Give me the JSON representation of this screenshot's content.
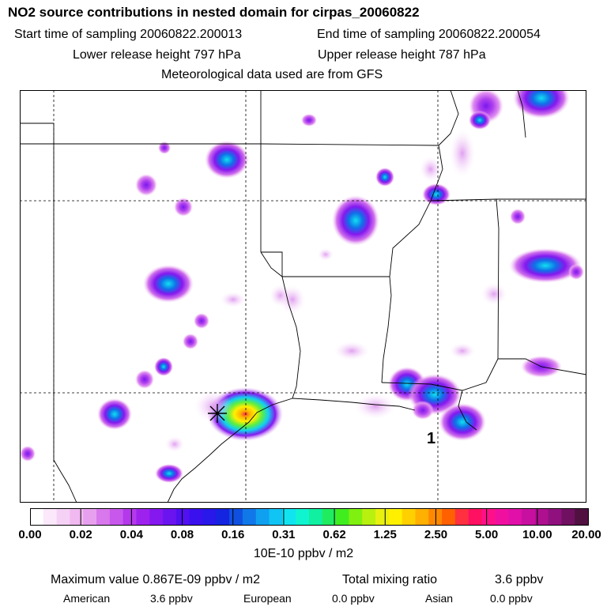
{
  "header": {
    "title": "NO2 source contributions in nested domain for cirpas_20060822",
    "start_label": "Start time of sampling 20060822.200013",
    "end_label": "End time of sampling 20060822.200054",
    "lower_label": "Lower release height  797 hPa",
    "upper_label": "Upper release height  787 hPa",
    "met_label": "Meteorological data used are from GFS"
  },
  "map": {
    "marker_label": "1",
    "source_site": "star marker near Houston"
  },
  "colorbar": {
    "ticks": [
      "0.00",
      "0.02",
      "0.04",
      "0.08",
      "0.16",
      "0.31",
      "0.62",
      "1.25",
      "2.50",
      "5.00",
      "10.00",
      "20.00"
    ],
    "units": "10E-10 ppbv / m2",
    "colors": [
      "#ffffff",
      "#fbe8fb",
      "#f6d1f6",
      "#f0b9f0",
      "#e7a0ee",
      "#d878ec",
      "#c858ec",
      "#b438ec",
      "#9e22ee",
      "#8418ef",
      "#6a14f0",
      "#5010f0",
      "#3a10ee",
      "#2818ea",
      "#1424e0",
      "#1050e0",
      "#1078e8",
      "#10a0f0",
      "#10c4f4",
      "#10e4f0",
      "#10f4d0",
      "#10f0a0",
      "#20ec60",
      "#40ee20",
      "#80f010",
      "#b8f010",
      "#e8f010",
      "#fff000",
      "#ffd000",
      "#ffb000",
      "#ff8800",
      "#ff6000",
      "#ff3040",
      "#ff1060",
      "#ff1088",
      "#f010a0",
      "#e010a8",
      "#c810a0",
      "#ae1090",
      "#901080",
      "#701060",
      "#501040"
    ]
  },
  "footer": {
    "max_label": "Maximum value  0.867E-09 ppbv / m2",
    "total_label": "Total mixing ratio",
    "total_value": "3.6 ppbv",
    "american_label": "American",
    "american_value": "3.6 ppbv",
    "european_label": "European",
    "european_value": "0.0 ppbv",
    "asian_label": "Asian",
    "asian_value": "0.0 ppbv"
  }
}
